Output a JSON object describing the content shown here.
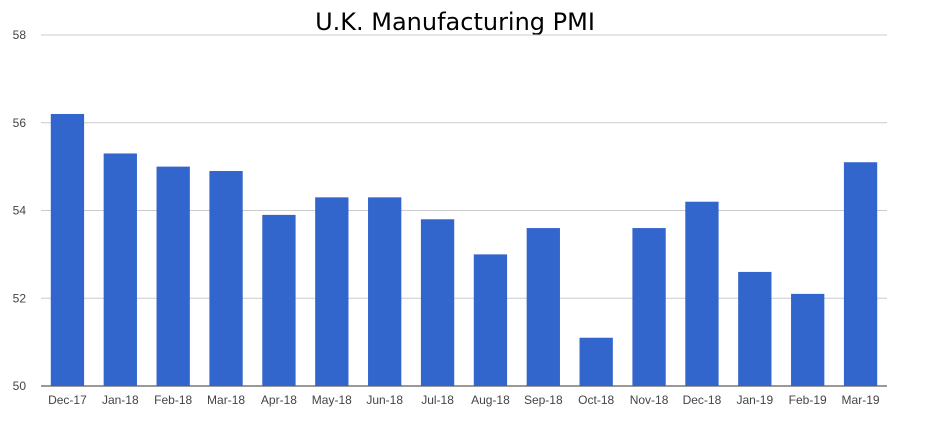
{
  "chart_data": {
    "type": "bar",
    "title": "U.K. Manufacturing PMI",
    "xlabel": "",
    "ylabel": "",
    "categories": [
      "Dec-17",
      "Jan-18",
      "Feb-18",
      "Mar-18",
      "Apr-18",
      "May-18",
      "Jun-18",
      "Jul-18",
      "Aug-18",
      "Sep-18",
      "Oct-18",
      "Nov-18",
      "Dec-18",
      "Jan-19",
      "Feb-19",
      "Mar-19"
    ],
    "values": [
      56.2,
      55.3,
      55.0,
      54.9,
      53.9,
      54.3,
      54.3,
      53.8,
      53.0,
      53.6,
      51.1,
      53.6,
      54.2,
      52.6,
      52.1,
      55.1
    ],
    "ylim": [
      50,
      58
    ],
    "yticks": [
      50,
      52,
      54,
      56,
      58
    ],
    "grid": true,
    "legend": "none",
    "bar_color": "#3366cc"
  }
}
